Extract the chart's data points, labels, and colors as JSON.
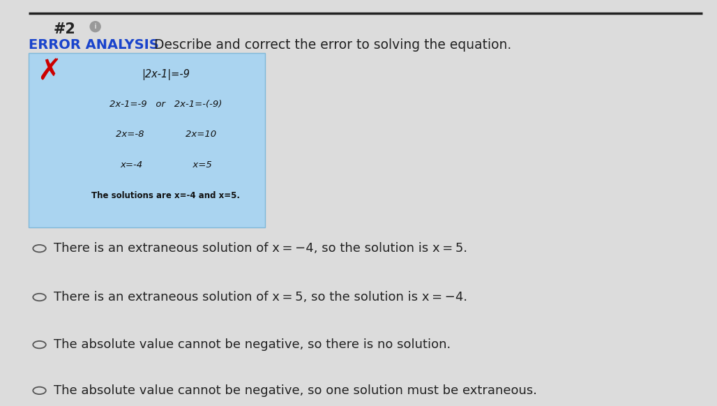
{
  "background_color": "#dcdcdc",
  "top_line_color": "#222222",
  "title_number": "#2",
  "title_info": "i",
  "error_analysis_label": "ERROR ANALYSIS",
  "error_analysis_color": "#1a44cc",
  "header_text": "Describe and correct the error to solving the equation.",
  "box_bg_color": "#aad4f0",
  "box_border_color": "#80b8d8",
  "x_mark_color": "#cc0000",
  "box_lines": [
    "|2x-1|=-9",
    "2x-1=-9  or  2x-1=-(-9)",
    "2x=-8          2x=10",
    "x=-4             x=5",
    "The solutions are x=-4 and x=5."
  ],
  "options": [
    "There is an extraneous solution of x = −4, so the solution is x = 5.",
    "There is an extraneous solution of x = 5, so the solution is x = −4.",
    "The absolute value cannot be negative, so there is no solution.",
    "The absolute value cannot be negative, so one solution must be extraneous."
  ],
  "circle_color": "#555555",
  "fig_width": 10.28,
  "fig_height": 5.82,
  "dpi": 100
}
